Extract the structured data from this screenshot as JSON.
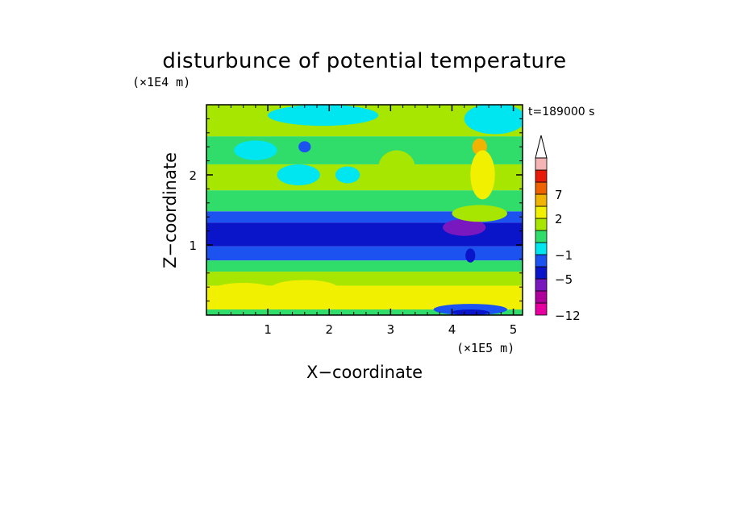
{
  "chart_data": {
    "type": "heatmap",
    "title": "disturbunce of potential temperature",
    "xlabel": "X−coordinate",
    "ylabel": "Z−coordinate",
    "x_unit": "(×1E5 m)",
    "y_unit": "(×1E4 m)",
    "time_label": "t=189000 s",
    "xlim": [
      0,
      5.15
    ],
    "ylim": [
      0,
      3.0
    ],
    "x_ticks": [
      1,
      2,
      3,
      4,
      5
    ],
    "y_ticks": [
      1,
      2
    ],
    "x_tick_labels": [
      "1",
      "2",
      "3",
      "4",
      "5"
    ],
    "y_tick_labels": [
      "1",
      "2"
    ],
    "colorbar": {
      "levels": [
        -12,
        -9,
        -7,
        -5,
        -3,
        -1,
        0,
        1,
        2,
        4,
        7,
        9,
        12
      ],
      "tick_labels": [
        {
          "level": -12,
          "text": "−12"
        },
        {
          "level": -5,
          "text": "−5"
        },
        {
          "level": -1,
          "text": "−1"
        },
        {
          "level": 2,
          "text": "2"
        },
        {
          "level": 7,
          "text": "7"
        }
      ],
      "colors": [
        "#e6009f",
        "#b0009c",
        "#7a18c0",
        "#0a14c8",
        "#1c52f0",
        "#00e6f0",
        "#30dc6a",
        "#a6e600",
        "#f0f000",
        "#f0b400",
        "#f06200",
        "#e81a0a",
        "#f4b4b4"
      ],
      "extend": "max"
    },
    "bands": [
      {
        "z": [
          0.0,
          0.08
        ],
        "value": 0.5
      },
      {
        "z": [
          0.08,
          0.42
        ],
        "value": 2.5
      },
      {
        "z": [
          0.42,
          0.62
        ],
        "value": 1.5
      },
      {
        "z": [
          0.62,
          0.78
        ],
        "value": 0.5
      },
      {
        "z": [
          0.78,
          0.98
        ],
        "value": -1.5
      },
      {
        "z": [
          0.98,
          1.32
        ],
        "value": -4.0
      },
      {
        "z": [
          1.32,
          1.48
        ],
        "value": -1.5
      },
      {
        "z": [
          1.48,
          1.78
        ],
        "value": 0.5
      },
      {
        "z": [
          1.78,
          2.15
        ],
        "value": 1.5
      },
      {
        "z": [
          2.15,
          2.55
        ],
        "value": 0.5
      },
      {
        "z": [
          2.55,
          3.0
        ],
        "value": 1.5
      }
    ],
    "features": [
      {
        "x": 0.6,
        "z": 0.3,
        "rx": 0.6,
        "rz": 0.16,
        "value": 3.0
      },
      {
        "x": 1.6,
        "z": 0.38,
        "rx": 0.55,
        "rz": 0.12,
        "value": 3.0
      },
      {
        "x": 2.7,
        "z": 0.28,
        "rx": 0.35,
        "rz": 0.1,
        "value": 3.0
      },
      {
        "x": 4.3,
        "z": 0.08,
        "rx": 0.6,
        "rz": 0.08,
        "value": -1.5
      },
      {
        "x": 4.3,
        "z": 0.04,
        "rx": 0.3,
        "rz": 0.04,
        "value": -4.0
      },
      {
        "x": 4.2,
        "z": 1.25,
        "rx": 0.35,
        "rz": 0.12,
        "value": -6.0
      },
      {
        "x": 4.3,
        "z": 0.85,
        "rx": 0.08,
        "rz": 0.1,
        "value": -4.0
      },
      {
        "x": 1.5,
        "z": 2.0,
        "rx": 0.35,
        "rz": 0.15,
        "value": -0.5
      },
      {
        "x": 0.8,
        "z": 2.35,
        "rx": 0.35,
        "rz": 0.14,
        "value": -0.5
      },
      {
        "x": 1.6,
        "z": 2.4,
        "rx": 0.1,
        "rz": 0.08,
        "value": -1.5
      },
      {
        "x": 2.3,
        "z": 2.0,
        "rx": 0.2,
        "rz": 0.12,
        "value": -0.5
      },
      {
        "x": 3.1,
        "z": 2.1,
        "rx": 0.3,
        "rz": 0.25,
        "value": 1.5
      },
      {
        "x": 1.9,
        "z": 2.85,
        "rx": 0.9,
        "rz": 0.15,
        "value": -0.5
      },
      {
        "x": 4.7,
        "z": 2.8,
        "rx": 0.5,
        "rz": 0.22,
        "value": -0.5
      },
      {
        "x": 4.45,
        "z": 2.4,
        "rx": 0.12,
        "rz": 0.12,
        "value": 5.0
      },
      {
        "x": 4.5,
        "z": 2.0,
        "rx": 0.2,
        "rz": 0.35,
        "value": 3.0
      },
      {
        "x": 4.45,
        "z": 1.45,
        "rx": 0.45,
        "rz": 0.12,
        "value": 1.5
      }
    ]
  }
}
